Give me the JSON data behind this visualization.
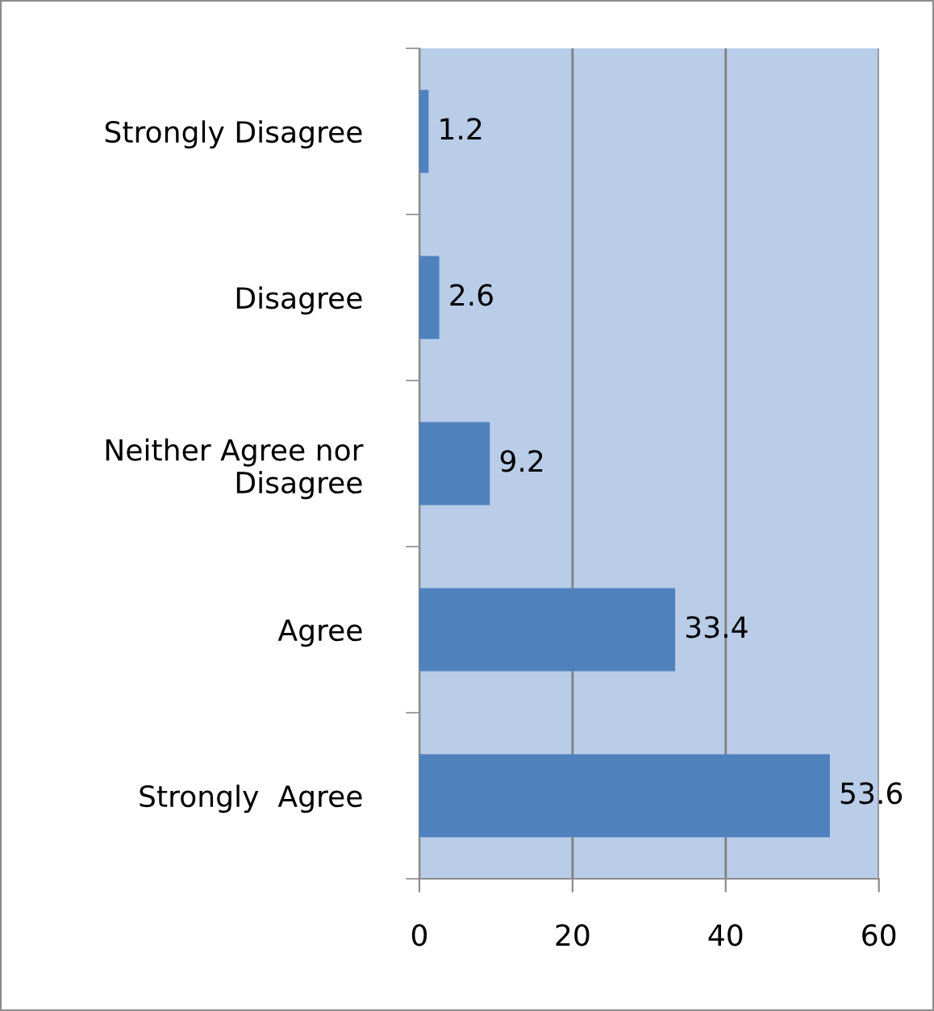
{
  "chart_data": {
    "type": "bar",
    "orientation": "horizontal",
    "categories": [
      "Strongly Disagree",
      "Disagree",
      "Neither Agree nor Disagree",
      "Agree",
      "Strongly  Agree"
    ],
    "values": [
      1.2,
      2.6,
      9.2,
      33.4,
      53.6
    ],
    "color": "#4f81bd",
    "xlim": [
      0,
      60
    ],
    "xticks": [
      0,
      20,
      40,
      60
    ],
    "grid": "x",
    "data_labels": true
  }
}
